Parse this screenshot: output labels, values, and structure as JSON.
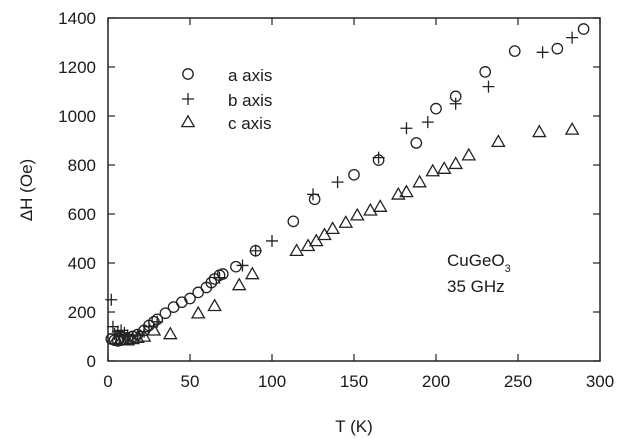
{
  "chart_data": {
    "type": "scatter",
    "xlabel": "T (K)",
    "ylabel": "ΔH (Oe)",
    "xlim": [
      0,
      300
    ],
    "ylim": [
      0,
      1400
    ],
    "x_ticks": [
      0,
      50,
      100,
      150,
      200,
      250,
      300
    ],
    "y_ticks": [
      0,
      200,
      400,
      600,
      800,
      1000,
      1200,
      1400
    ],
    "legend_position": "upper-left",
    "grid": false,
    "annotation": {
      "main": "CuGeO",
      "subscript": "3",
      "line2": "35 GHz"
    },
    "series": [
      {
        "name": "a axis",
        "marker": "circle",
        "points": [
          [
            2,
            90
          ],
          [
            4,
            85
          ],
          [
            6,
            82
          ],
          [
            8,
            85
          ],
          [
            10,
            88
          ],
          [
            12,
            90
          ],
          [
            15,
            100
          ],
          [
            18,
            108
          ],
          [
            22,
            125
          ],
          [
            25,
            145
          ],
          [
            28,
            160
          ],
          [
            30,
            170
          ],
          [
            35,
            195
          ],
          [
            40,
            220
          ],
          [
            45,
            240
          ],
          [
            50,
            255
          ],
          [
            55,
            280
          ],
          [
            60,
            300
          ],
          [
            63,
            320
          ],
          [
            65,
            335
          ],
          [
            68,
            350
          ],
          [
            70,
            355
          ],
          [
            78,
            385
          ],
          [
            90,
            450
          ],
          [
            113,
            570
          ],
          [
            126,
            660
          ],
          [
            150,
            760
          ],
          [
            165,
            820
          ],
          [
            188,
            890
          ],
          [
            200,
            1030
          ],
          [
            212,
            1080
          ],
          [
            230,
            1180
          ],
          [
            248,
            1265
          ],
          [
            274,
            1275
          ],
          [
            290,
            1355
          ]
        ]
      },
      {
        "name": "b axis",
        "marker": "plus",
        "points": [
          [
            2,
            250
          ],
          [
            3,
            140
          ],
          [
            4,
            110
          ],
          [
            6,
            120
          ],
          [
            8,
            125
          ],
          [
            10,
            115
          ],
          [
            12,
            105
          ],
          [
            15,
            100
          ],
          [
            18,
            105
          ],
          [
            22,
            120
          ],
          [
            25,
            140
          ],
          [
            30,
            160
          ],
          [
            68,
            340
          ],
          [
            82,
            390
          ],
          [
            90,
            450
          ],
          [
            100,
            490
          ],
          [
            125,
            680
          ],
          [
            140,
            730
          ],
          [
            165,
            830
          ],
          [
            182,
            950
          ],
          [
            195,
            975
          ],
          [
            212,
            1050
          ],
          [
            232,
            1120
          ],
          [
            265,
            1260
          ],
          [
            283,
            1320
          ]
        ]
      },
      {
        "name": "c axis",
        "marker": "triangle",
        "points": [
          [
            5,
            90
          ],
          [
            8,
            85
          ],
          [
            12,
            85
          ],
          [
            15,
            90
          ],
          [
            18,
            95
          ],
          [
            22,
            100
          ],
          [
            28,
            125
          ],
          [
            38,
            110
          ],
          [
            55,
            195
          ],
          [
            65,
            225
          ],
          [
            80,
            310
          ],
          [
            88,
            355
          ],
          [
            115,
            450
          ],
          [
            122,
            470
          ],
          [
            127,
            490
          ],
          [
            132,
            515
          ],
          [
            137,
            540
          ],
          [
            145,
            565
          ],
          [
            152,
            595
          ],
          [
            160,
            615
          ],
          [
            166,
            630
          ],
          [
            177,
            680
          ],
          [
            182,
            690
          ],
          [
            190,
            730
          ],
          [
            198,
            775
          ],
          [
            205,
            785
          ],
          [
            212,
            805
          ],
          [
            220,
            840
          ],
          [
            238,
            895
          ],
          [
            263,
            935
          ],
          [
            283,
            945
          ]
        ]
      }
    ]
  }
}
